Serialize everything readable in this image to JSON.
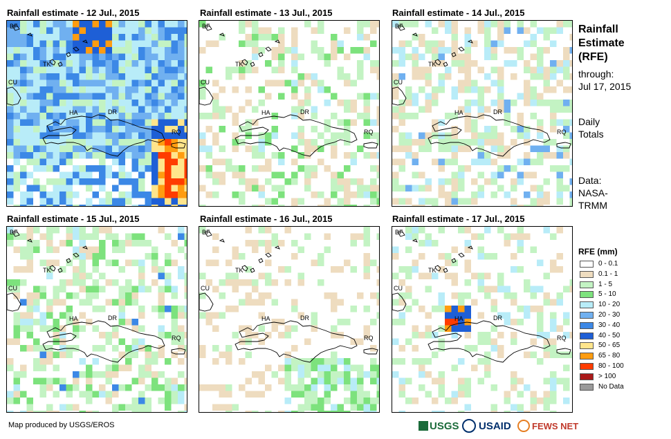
{
  "panels": [
    {
      "title": "Rainfall estimate - 12 Jul., 2015"
    },
    {
      "title": "Rainfall estimate - 13 Jul., 2015"
    },
    {
      "title": "Rainfall estimate - 14 Jul., 2015"
    },
    {
      "title": "Rainfall estimate - 15 Jul., 2015"
    },
    {
      "title": "Rainfall estimate - 16 Jul., 2015"
    },
    {
      "title": "Rainfall estimate - 17 Jul., 2015"
    }
  ],
  "region_labels": {
    "bf": "BF",
    "tk": "TK",
    "cu": "CU",
    "ha": "HA",
    "dr": "DR",
    "rq": "RQ"
  },
  "sidebar": {
    "title_lines": [
      "Rainfall",
      "Estimate",
      "(RFE)"
    ],
    "through_label": "through:",
    "through_date": "Jul 17, 2015",
    "totals_lines": [
      "Daily",
      "Totals"
    ],
    "data_lines": [
      "Data:",
      "NASA-",
      "TRMM"
    ]
  },
  "legend": {
    "title": "RFE (mm)",
    "items": [
      {
        "label": "0 - 0.1",
        "color": "#ffffff"
      },
      {
        "label": "0.1 - 1",
        "color": "#eedcbf"
      },
      {
        "label": "1 - 5",
        "color": "#c3f3c3"
      },
      {
        "label": "5 - 10",
        "color": "#7de27d"
      },
      {
        "label": "10 - 20",
        "color": "#b8ecf8"
      },
      {
        "label": "20 - 30",
        "color": "#70b0f0"
      },
      {
        "label": "30 - 40",
        "color": "#3c88e6"
      },
      {
        "label": "40 - 50",
        "color": "#1e5fd6"
      },
      {
        "label": "50 - 65",
        "color": "#ffe58c"
      },
      {
        "label": "65 - 80",
        "color": "#ff9c10"
      },
      {
        "label": "80 - 100",
        "color": "#ff3c00"
      },
      {
        "label": "> 100",
        "color": "#aa1a1a"
      },
      {
        "label": "No Data",
        "color": "#9a9a9a"
      }
    ]
  },
  "footer": {
    "credit": "Map produced by USGS/EROS"
  },
  "logos": {
    "usgs": "USGS",
    "usaid": "USAID",
    "fewsnet": "FEWS NET"
  }
}
